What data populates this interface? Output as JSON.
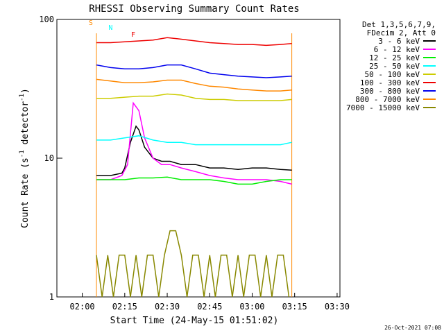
{
  "chart_data": {
    "type": "line",
    "title": "RHESSI Observing Summary Count Rates",
    "xlabel": "Start Time (24-May-15 01:51:02)",
    "ylabel": "Count Rate (s⁻¹ detector⁻¹)",
    "ylabel_main": "Count Rate (s",
    "ylabel_exp1": "-1",
    "ylabel_mid": " detector",
    "ylabel_exp2": "-1",
    "ylabel_end": ")",
    "yscale": "log",
    "ylim": [
      1,
      100
    ],
    "xlim": [
      "01:51:02",
      "03:31:00"
    ],
    "xticks": [
      "02:00",
      "02:15",
      "02:30",
      "02:45",
      "03:00",
      "03:15",
      "03:30"
    ],
    "yticks": [
      "1",
      "10",
      "100"
    ],
    "legend_header": [
      "Det 1,3,5,6,7,9,",
      "FDecim 2, Att 0"
    ],
    "legend_position": "right",
    "series": [
      {
        "name": "3 - 6 keV",
        "color": "#000000",
        "x": [
          "02:05",
          "02:10",
          "02:14",
          "02:15",
          "02:17",
          "02:19",
          "02:20",
          "02:22",
          "02:25",
          "02:28",
          "02:31",
          "02:35",
          "02:40",
          "02:45",
          "02:50",
          "02:55",
          "03:00",
          "03:05",
          "03:10",
          "03:14"
        ],
        "y": [
          7.5,
          7.5,
          7.8,
          8.5,
          13,
          17,
          16,
          12,
          10,
          9.5,
          9.5,
          9,
          9,
          8.5,
          8.5,
          8.3,
          8.5,
          8.5,
          8.3,
          8.2
        ]
      },
      {
        "name": "6 - 12 keV",
        "color": "#ff00ff",
        "x": [
          "02:05",
          "02:10",
          "02:14",
          "02:16",
          "02:18",
          "02:20",
          "02:22",
          "02:25",
          "02:28",
          "02:31",
          "02:35",
          "02:40",
          "02:45",
          "02:50",
          "02:55",
          "03:00",
          "03:05",
          "03:10",
          "03:14"
        ],
        "y": [
          7,
          7,
          7.5,
          9,
          25,
          22,
          14,
          10,
          9,
          9,
          8.5,
          8,
          7.5,
          7.2,
          7,
          7,
          7,
          6.8,
          6.5
        ]
      },
      {
        "name": "12 - 25 keV",
        "color": "#00ee00",
        "x": [
          "02:05",
          "02:10",
          "02:15",
          "02:20",
          "02:25",
          "02:30",
          "02:35",
          "02:40",
          "02:45",
          "02:50",
          "02:55",
          "03:00",
          "03:05",
          "03:10",
          "03:14"
        ],
        "y": [
          7,
          7,
          7,
          7.2,
          7.2,
          7.3,
          7,
          7,
          7,
          6.8,
          6.5,
          6.5,
          6.8,
          7,
          7
        ]
      },
      {
        "name": "25 - 50 keV",
        "color": "#00ffff",
        "x": [
          "02:05",
          "02:10",
          "02:15",
          "02:20",
          "02:25",
          "02:30",
          "02:35",
          "02:40",
          "02:45",
          "02:50",
          "02:55",
          "03:00",
          "03:05",
          "03:10",
          "03:14"
        ],
        "y": [
          13.5,
          13.5,
          14,
          14.5,
          13.5,
          13,
          13,
          12.5,
          12.5,
          12.5,
          12.5,
          12.5,
          12.5,
          12.5,
          13
        ]
      },
      {
        "name": "50 - 100 keV",
        "color": "#cccc00",
        "x": [
          "02:05",
          "02:10",
          "02:15",
          "02:20",
          "02:25",
          "02:30",
          "02:35",
          "02:40",
          "02:45",
          "02:50",
          "02:55",
          "03:00",
          "03:05",
          "03:10",
          "03:14"
        ],
        "y": [
          27,
          27,
          27.5,
          28,
          28,
          29,
          28.5,
          27,
          26.5,
          26.5,
          26,
          26,
          26,
          26,
          26.5
        ]
      },
      {
        "name": "100 - 300 keV",
        "color": "#ee0000",
        "x": [
          "02:05",
          "02:10",
          "02:15",
          "02:20",
          "02:25",
          "02:30",
          "02:35",
          "02:40",
          "02:45",
          "02:50",
          "02:55",
          "03:00",
          "03:05",
          "03:10",
          "03:14"
        ],
        "y": [
          68,
          68,
          69,
          70,
          71,
          74,
          72,
          70,
          68,
          67,
          66,
          66,
          65,
          66,
          67
        ]
      },
      {
        "name": "300 - 800 keV",
        "color": "#0000ee",
        "x": [
          "02:05",
          "02:10",
          "02:15",
          "02:20",
          "02:25",
          "02:30",
          "02:35",
          "02:40",
          "02:45",
          "02:50",
          "02:55",
          "03:00",
          "03:05",
          "03:10",
          "03:14"
        ],
        "y": [
          47,
          45,
          44,
          44,
          45,
          47,
          47,
          44,
          41,
          40,
          39,
          38.5,
          38,
          38.5,
          39
        ]
      },
      {
        "name": "800 - 7000 keV",
        "color": "#ff8800",
        "x": [
          "02:05",
          "02:10",
          "02:15",
          "02:20",
          "02:25",
          "02:30",
          "02:35",
          "02:40",
          "02:45",
          "02:50",
          "02:55",
          "03:00",
          "03:05",
          "03:10",
          "03:14"
        ],
        "y": [
          37,
          36,
          35,
          35,
          35.5,
          36.5,
          36.5,
          34.5,
          33,
          32.5,
          31.5,
          31,
          30.5,
          30.5,
          31
        ]
      },
      {
        "name": "7000 - 15000 keV",
        "color": "#888800",
        "x": [
          "02:05",
          "02:07",
          "02:09",
          "02:11",
          "02:13",
          "02:15",
          "02:17",
          "02:19",
          "02:21",
          "02:23",
          "02:25",
          "02:27",
          "02:29",
          "02:31",
          "02:33",
          "02:35",
          "02:37",
          "02:39",
          "02:41",
          "02:43",
          "02:45",
          "02:47",
          "02:49",
          "02:51",
          "02:53",
          "02:55",
          "02:57",
          "02:59",
          "03:01",
          "03:03",
          "03:05",
          "03:07",
          "03:09",
          "03:11",
          "03:13"
        ],
        "y": [
          2,
          1,
          2,
          1,
          2,
          2,
          1,
          2,
          1,
          2,
          2,
          1,
          2,
          3,
          3,
          2,
          1,
          2,
          2,
          1,
          2,
          1,
          2,
          2,
          1,
          2,
          1,
          2,
          2,
          1,
          2,
          1,
          2,
          2,
          1
        ]
      }
    ],
    "annotations": [
      {
        "text": "S",
        "color": "#ff8800",
        "x": "02:03",
        "y": 91
      },
      {
        "text": "N",
        "color": "#00ffff",
        "x": "02:10",
        "y": 84
      },
      {
        "text": "F",
        "color": "#ee0000",
        "x": "02:18",
        "y": 75
      }
    ],
    "timestamp": "26-Oct-2021 07:08"
  }
}
